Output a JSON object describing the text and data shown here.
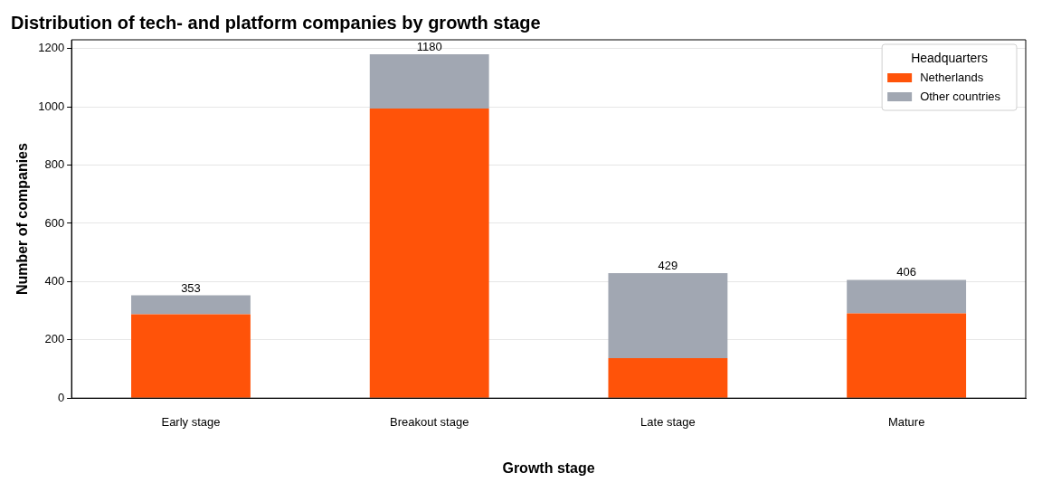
{
  "chart_data": {
    "type": "bar",
    "title": "Distribution of tech- and platform companies by growth stage",
    "xlabel": "Growth stage",
    "ylabel": "Number of companies",
    "legend_title": "Headquarters",
    "categories": [
      "Early stage",
      "Breakout stage",
      "Late stage",
      "Mature"
    ],
    "series": [
      {
        "name": "Netherlands",
        "color": "#ff5309",
        "values": [
          288,
          994,
          137,
          291
        ]
      },
      {
        "name": "Other countries",
        "color": "#a1a7b2",
        "values": [
          65,
          186,
          292,
          115
        ]
      }
    ],
    "stacked": true,
    "totals": [
      "353",
      "1180",
      "429",
      "406"
    ],
    "ylim": [
      0,
      1230
    ],
    "yticks": [
      0,
      200,
      400,
      600,
      800,
      1000,
      1200
    ],
    "grid": "y",
    "legend": "top right"
  }
}
